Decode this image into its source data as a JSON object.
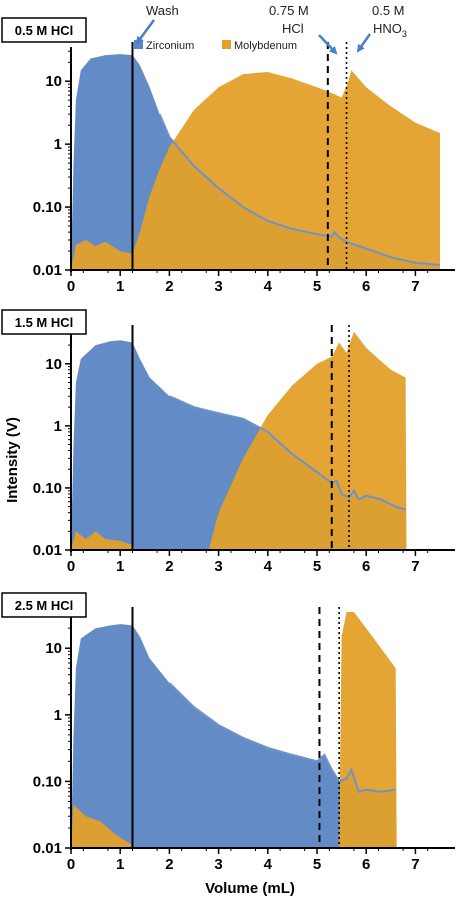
{
  "colors": {
    "zirconium": "#5B86C4",
    "zirconium_line": "#6E93C9",
    "molybdenum": "#E3A02A",
    "axis": "#000000"
  },
  "legend": {
    "zirconium": "Zirconium",
    "molybdenum": "Molybdenum"
  },
  "axes": {
    "xlabel": "Volume (mL)",
    "ylabel": "Intensity (V)",
    "x_ticks": [
      "0",
      "1",
      "2",
      "3",
      "4",
      "5",
      "6",
      "7"
    ],
    "y_ticks": [
      "0.01",
      "0.10",
      "1",
      "10"
    ]
  },
  "annotations": {
    "wash": "Wash",
    "hcl_conc": "0.75 M",
    "hcl": "HCl",
    "hno3_conc": "0.5 M",
    "hno3": "HNO",
    "hno3_sub": "3"
  },
  "chart_data": [
    {
      "type": "area",
      "panel_label": "0.5 M HCl",
      "xlabel": "",
      "ylabel": "",
      "xlim": [
        0,
        7.5
      ],
      "ylim": [
        0.01,
        35
      ],
      "yscale": "log",
      "grid": false,
      "legend_position": "top",
      "wash_line": 1.25,
      "hcl_line": 5.22,
      "hno3_line": 5.6,
      "series": [
        {
          "name": "Zirconium",
          "points": [
            [
              0.0,
              0.01
            ],
            [
              0.05,
              0.5
            ],
            [
              0.1,
              5
            ],
            [
              0.2,
              15
            ],
            [
              0.4,
              23
            ],
            [
              0.7,
              26
            ],
            [
              1.0,
              27
            ],
            [
              1.25,
              26
            ],
            [
              1.4,
              18
            ],
            [
              1.6,
              8
            ],
            [
              1.8,
              3
            ],
            [
              2.0,
              1.3
            ],
            [
              2.5,
              0.45
            ],
            [
              3.0,
              0.2
            ],
            [
              3.5,
              0.1
            ],
            [
              4.0,
              0.06
            ],
            [
              4.5,
              0.045
            ],
            [
              5.0,
              0.037
            ],
            [
              5.3,
              0.034
            ],
            [
              5.35,
              0.04
            ],
            [
              5.45,
              0.033
            ],
            [
              5.6,
              0.028
            ],
            [
              6.0,
              0.022
            ],
            [
              6.5,
              0.016
            ],
            [
              7.0,
              0.013
            ],
            [
              7.5,
              0.012
            ]
          ]
        },
        {
          "name": "Molybdenum",
          "points": [
            [
              0.0,
              0.01
            ],
            [
              0.1,
              0.025
            ],
            [
              0.3,
              0.03
            ],
            [
              0.5,
              0.024
            ],
            [
              0.7,
              0.028
            ],
            [
              1.0,
              0.02
            ],
            [
              1.25,
              0.018
            ],
            [
              1.4,
              0.04
            ],
            [
              1.6,
              0.15
            ],
            [
              1.8,
              0.4
            ],
            [
              2.0,
              0.9
            ],
            [
              2.5,
              3.5
            ],
            [
              3.0,
              8
            ],
            [
              3.5,
              13
            ],
            [
              4.0,
              14
            ],
            [
              4.5,
              11
            ],
            [
              5.0,
              8
            ],
            [
              5.3,
              6.5
            ],
            [
              5.5,
              5.5
            ],
            [
              5.62,
              9
            ],
            [
              5.7,
              15
            ],
            [
              6.0,
              8
            ],
            [
              6.5,
              4
            ],
            [
              7.0,
              2.2
            ],
            [
              7.5,
              1.5
            ]
          ]
        }
      ]
    },
    {
      "type": "area",
      "panel_label": "1.5 M HCl",
      "xlabel": "",
      "ylabel": "Intensity (V)",
      "xlim": [
        0,
        7.5
      ],
      "ylim": [
        0.01,
        35
      ],
      "yscale": "log",
      "grid": false,
      "wash_line": 1.25,
      "hcl_line": 5.3,
      "hno3_line": 5.65,
      "series": [
        {
          "name": "Zirconium",
          "points": [
            [
              0.0,
              0.01
            ],
            [
              0.05,
              0.5
            ],
            [
              0.1,
              5
            ],
            [
              0.2,
              12
            ],
            [
              0.5,
              20
            ],
            [
              0.8,
              23
            ],
            [
              1.0,
              24
            ],
            [
              1.25,
              22
            ],
            [
              1.4,
              12
            ],
            [
              1.6,
              6
            ],
            [
              2.0,
              3
            ],
            [
              2.5,
              2
            ],
            [
              3.0,
              1.6
            ],
            [
              3.5,
              1.3
            ],
            [
              4.0,
              0.8
            ],
            [
              4.5,
              0.35
            ],
            [
              5.0,
              0.18
            ],
            [
              5.3,
              0.12
            ],
            [
              5.4,
              0.13
            ],
            [
              5.5,
              0.08
            ],
            [
              5.65,
              0.07
            ],
            [
              5.75,
              0.09
            ],
            [
              5.85,
              0.065
            ],
            [
              6.0,
              0.075
            ],
            [
              6.3,
              0.065
            ],
            [
              6.6,
              0.05
            ],
            [
              6.8,
              0.045
            ]
          ]
        },
        {
          "name": "Molybdenum",
          "points": [
            [
              0.0,
              0.01
            ],
            [
              0.1,
              0.02
            ],
            [
              0.3,
              0.015
            ],
            [
              0.5,
              0.02
            ],
            [
              0.7,
              0.015
            ],
            [
              1.0,
              0.014
            ],
            [
              1.25,
              0.012
            ],
            [
              1.3,
              0.01
            ],
            [
              2.8,
              0.01
            ],
            [
              3.0,
              0.04
            ],
            [
              3.5,
              0.3
            ],
            [
              4.0,
              1.5
            ],
            [
              4.5,
              4.5
            ],
            [
              5.0,
              10
            ],
            [
              5.3,
              13
            ],
            [
              5.45,
              22
            ],
            [
              5.6,
              15
            ],
            [
              5.75,
              33
            ],
            [
              6.0,
              18
            ],
            [
              6.5,
              8
            ],
            [
              6.8,
              6
            ],
            [
              6.82,
              0.01
            ]
          ]
        }
      ]
    },
    {
      "type": "area",
      "panel_label": "2.5 M HCl",
      "xlabel": "Volume (mL)",
      "ylabel": "",
      "xlim": [
        0,
        7.5
      ],
      "ylim": [
        0.01,
        35
      ],
      "yscale": "log",
      "grid": false,
      "wash_line": 1.25,
      "hcl_line": 5.05,
      "hno3_line": 5.45,
      "series": [
        {
          "name": "Zirconium",
          "points": [
            [
              0.0,
              0.01
            ],
            [
              0.05,
              0.5
            ],
            [
              0.1,
              5
            ],
            [
              0.2,
              14
            ],
            [
              0.5,
              20
            ],
            [
              0.8,
              22
            ],
            [
              1.0,
              23
            ],
            [
              1.25,
              22
            ],
            [
              1.4,
              15
            ],
            [
              1.6,
              7
            ],
            [
              2.0,
              3
            ],
            [
              2.5,
              1.3
            ],
            [
              3.0,
              0.7
            ],
            [
              3.5,
              0.45
            ],
            [
              4.0,
              0.32
            ],
            [
              4.5,
              0.25
            ],
            [
              5.0,
              0.2
            ],
            [
              5.15,
              0.25
            ],
            [
              5.3,
              0.15
            ],
            [
              5.45,
              0.1
            ],
            [
              5.6,
              0.11
            ],
            [
              5.7,
              0.15
            ],
            [
              5.85,
              0.07
            ],
            [
              6.0,
              0.075
            ],
            [
              6.3,
              0.07
            ],
            [
              6.6,
              0.075
            ]
          ]
        },
        {
          "name": "Molybdenum",
          "points": [
            [
              0.0,
              0.01
            ],
            [
              0.05,
              0.045
            ],
            [
              0.3,
              0.03
            ],
            [
              0.6,
              0.025
            ],
            [
              0.9,
              0.016
            ],
            [
              1.25,
              0.011
            ],
            [
              1.3,
              0.01
            ],
            [
              5.45,
              0.01
            ],
            [
              5.5,
              15
            ],
            [
              5.6,
              35
            ],
            [
              5.75,
              35
            ],
            [
              6.0,
              20
            ],
            [
              6.3,
              10
            ],
            [
              6.6,
              5
            ],
            [
              6.62,
              0.01
            ]
          ]
        }
      ]
    }
  ]
}
